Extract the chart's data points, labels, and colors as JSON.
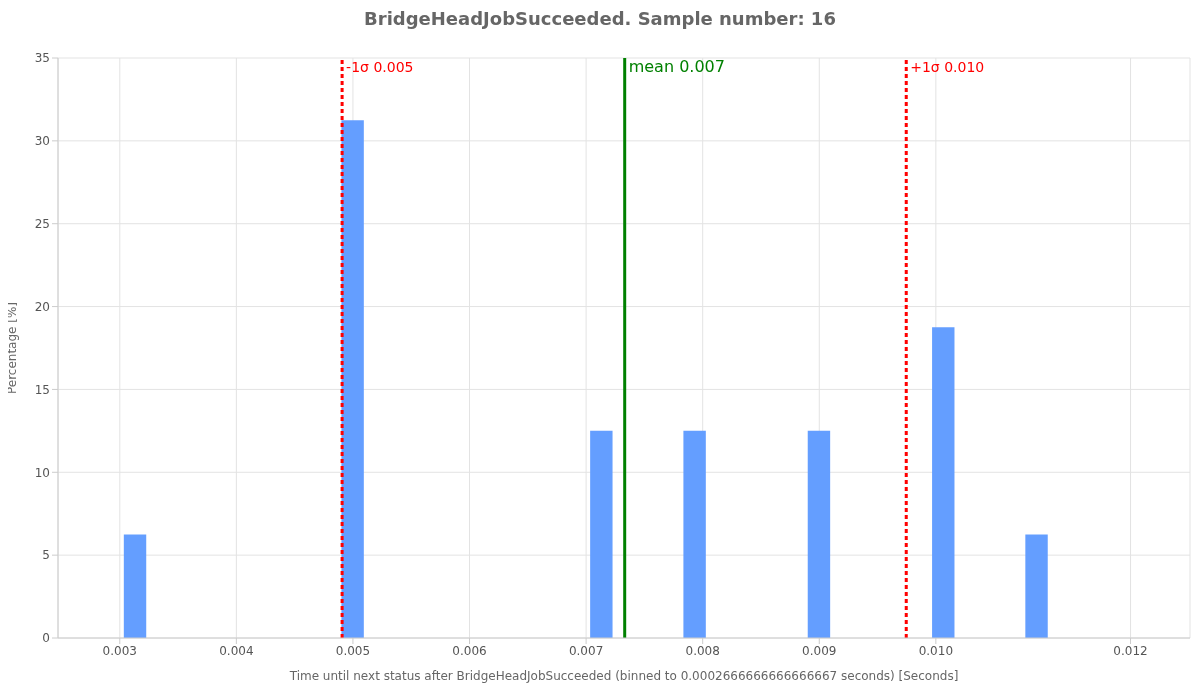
{
  "chart_data": {
    "type": "histogram",
    "title": "BridgeHeadJobSucceeded. Sample number: 16",
    "xlabel": "Time until next status after BridgeHeadJobSucceeded (binned to 0.0002666666666666667 seconds) [Seconds]",
    "ylabel": "Percentage [%]",
    "bins": [
      0.003,
      0.003267,
      0.003533,
      0.0038,
      0.004067,
      0.004333,
      0.0046,
      0.004867,
      0.005133,
      0.0054,
      0.005667,
      0.005933,
      0.0062,
      0.006467,
      0.006733,
      0.007,
      0.007267,
      0.007533,
      0.0078,
      0.008067,
      0.008333,
      0.0086,
      0.008867,
      0.009133,
      0.0094,
      0.009667,
      0.009933,
      0.0102,
      0.010467,
      0.010733,
      0.011
    ],
    "values": [
      6.25,
      0,
      0,
      0,
      0,
      0,
      0,
      31.25,
      0,
      0,
      0,
      0,
      0,
      0,
      0,
      12.5,
      0,
      0,
      12.5,
      0,
      0,
      0,
      12.5,
      0,
      0,
      0,
      18.75,
      0,
      0,
      6.25
    ],
    "color": "#619cff",
    "xlim": [
      0.00247,
      0.01218
    ],
    "xticks": [
      0.003,
      0.004,
      0.005,
      0.006,
      0.007,
      0.008,
      0.009,
      {
        "value": 0.01,
        "label": "0.010"
      },
      {
        "value": 0.01167,
        "label": "0.012"
      }
    ],
    "ylim": [
      0,
      35
    ],
    "yticks": [
      0,
      5,
      10,
      15,
      20,
      25,
      30,
      35
    ],
    "grid": true,
    "ref_lines": [
      {
        "axis": "x",
        "value": 0.004907,
        "label": "-1σ 0.005",
        "color": "#ff0000",
        "line_style": "dashed"
      },
      {
        "axis": "x",
        "value": 0.007331,
        "label": "mean 0.007",
        "color": "#008000",
        "line_style": "solid"
      },
      {
        "axis": "x",
        "value": 0.009746,
        "label": "+1σ 0.010",
        "color": "#ff0000",
        "line_style": "dashed"
      }
    ]
  }
}
